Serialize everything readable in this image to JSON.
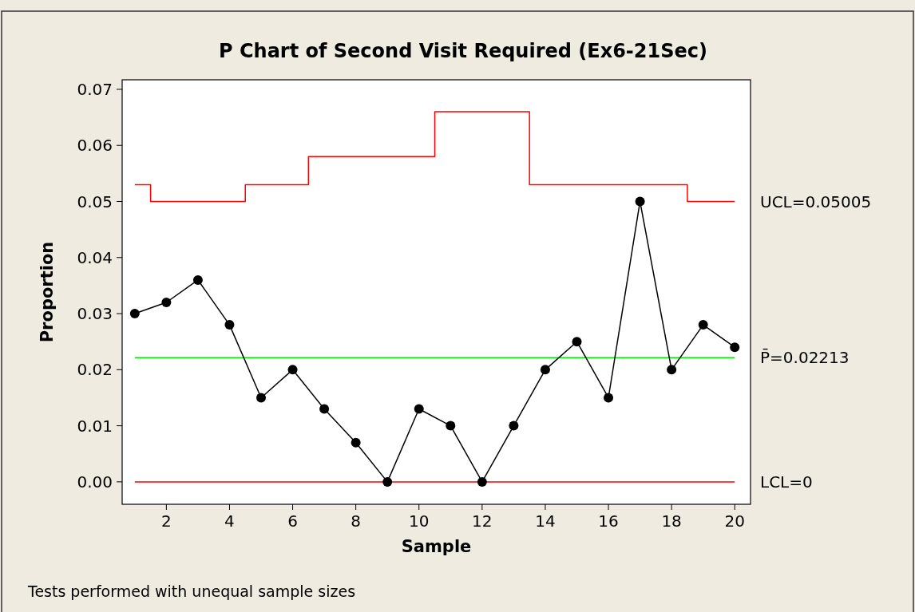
{
  "chart_data": {
    "type": "line",
    "title": "P Chart of Second Visit Required (Ex6-21Sec)",
    "xlabel": "Sample",
    "ylabel": "Proportion",
    "x": [
      1,
      2,
      3,
      4,
      5,
      6,
      7,
      8,
      9,
      10,
      11,
      12,
      13,
      14,
      15,
      16,
      17,
      18,
      19,
      20
    ],
    "series": [
      {
        "type": "step",
        "name": "UCL=0.05005",
        "color": "#ff0000",
        "marker": "none",
        "values": [
          0.053,
          0.05,
          0.05,
          0.05,
          0.053,
          0.053,
          0.058,
          0.058,
          0.058,
          0.058,
          0.066,
          0.066,
          0.066,
          0.053,
          0.053,
          0.053,
          0.053,
          0.053,
          0.05,
          0.05
        ]
      },
      {
        "color": "#000000",
        "marker": "circle",
        "values": [
          0.03,
          0.032,
          0.036,
          0.028,
          0.015,
          0.02,
          0.013,
          0.007,
          0,
          0.013,
          0.01,
          0,
          0.01,
          0.02,
          0.025,
          0.015,
          0.05,
          0.02,
          0.028,
          0.024
        ]
      }
    ],
    "ref_lines": [
      {
        "axis": "y",
        "value": 0.02213,
        "label": "P̄=0.02213",
        "color": "#00ee00"
      },
      {
        "axis": "y",
        "value": 0,
        "label": "LCL=0",
        "color": "#ff0000"
      }
    ],
    "xlim": [
      0.6,
      20.5
    ],
    "xticks": [
      2,
      4,
      6,
      8,
      10,
      12,
      14,
      16,
      18,
      20
    ],
    "ylim": [
      -0.004,
      0.0717
    ],
    "yticks": [
      {
        "value": 0,
        "label": "0.00"
      },
      {
        "value": 0.01,
        "label": "0.01"
      },
      {
        "value": 0.02,
        "label": "0.02"
      },
      {
        "value": 0.03,
        "label": "0.03"
      },
      {
        "value": 0.04,
        "label": "0.04"
      },
      {
        "value": 0.05,
        "label": "0.05"
      },
      {
        "value": 0.06,
        "label": "0.06"
      },
      {
        "value": 0.07,
        "label": "0.07"
      }
    ],
    "grid": false,
    "annotations": [
      "Tests performed with unequal sample sizes"
    ]
  }
}
